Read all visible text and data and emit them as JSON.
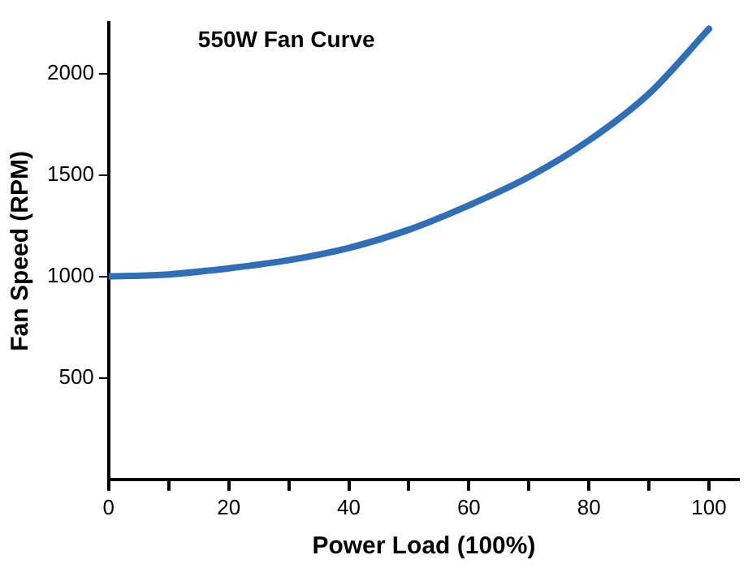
{
  "chart_data": {
    "type": "line",
    "title": "550W Fan Curve",
    "xlabel": "Power Load (100%)",
    "ylabel": "Fan Speed (RPM)",
    "x": [
      0,
      10,
      20,
      30,
      40,
      50,
      60,
      70,
      80,
      90,
      100
    ],
    "series": [
      {
        "color": "#2f6fb7",
        "values": [
          1000,
          1010,
          1040,
          1080,
          1140,
          1230,
          1350,
          1490,
          1670,
          1900,
          2220
        ]
      }
    ],
    "xlim": [
      0,
      105
    ],
    "xticks": [
      0,
      {
        "value": 10,
        "label": null
      },
      20,
      {
        "value": 30,
        "label": null
      },
      40,
      {
        "value": 50,
        "label": null
      },
      60,
      {
        "value": 70,
        "label": null
      },
      80,
      {
        "value": 90,
        "label": null
      },
      100
    ],
    "ylim": [
      0,
      2250
    ],
    "yticks": [
      500,
      1000,
      1500,
      2000
    ],
    "grid": false,
    "legend": false,
    "marker": "none",
    "line_style": "solid"
  }
}
